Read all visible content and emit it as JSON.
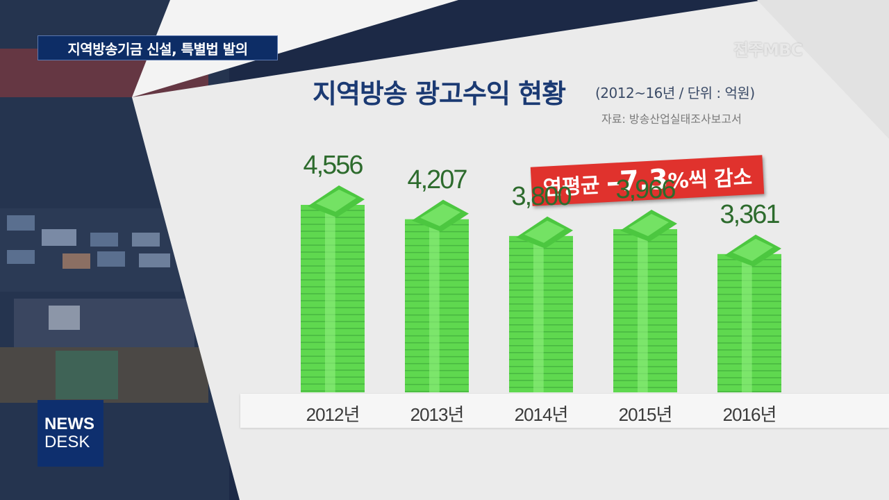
{
  "headline": "지역방송기금 신설, 특별법 발의",
  "logo": "전주MBC",
  "newsdesk": {
    "line1": "NEWS",
    "line2": "DESK"
  },
  "badge": {
    "prefix": "연평균",
    "value": "–7.3",
    "suffix": "%씩 감소"
  },
  "colors": {
    "bar": "#5fd84f",
    "bar_dark": "#3ea83a",
    "badge": "#e0322d",
    "title": "#1b3a73"
  },
  "chart_data": {
    "type": "bar",
    "title": "지역방송 광고수익 현황",
    "subtitle": "(2012~16년 / 단위 : 억원)",
    "source": "자료: 방송산업실태조사보고서",
    "categories": [
      "2012년",
      "2013년",
      "2014년",
      "2015년",
      "2016년"
    ],
    "values": [
      4556,
      4207,
      3800,
      3966,
      3361
    ],
    "value_labels": [
      "4,556",
      "4,207",
      "3,800",
      "3,966",
      "3,361"
    ],
    "ylim": [
      0,
      4556
    ],
    "grid": false,
    "legend": "none"
  }
}
